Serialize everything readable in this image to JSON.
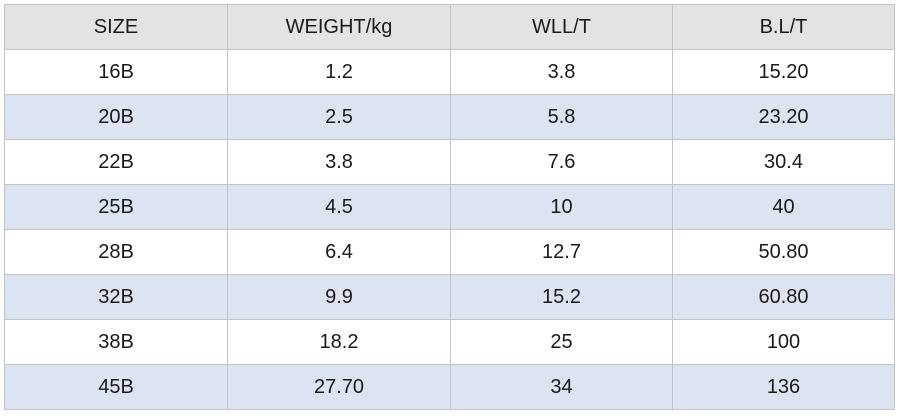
{
  "table": {
    "headers": [
      "SIZE",
      "WEIGHT/kg",
      "WLL/T",
      "B.L/T"
    ],
    "rows": [
      [
        "16B",
        "1.2",
        "3.8",
        "15.20"
      ],
      [
        "20B",
        "2.5",
        "5.8",
        "23.20"
      ],
      [
        "22B",
        "3.8",
        "7.6",
        "30.4"
      ],
      [
        "25B",
        "4.5",
        "10",
        "40"
      ],
      [
        "28B",
        "6.4",
        "12.7",
        "50.80"
      ],
      [
        "32B",
        "9.9",
        "15.2",
        "60.80"
      ],
      [
        "38B",
        "18.2",
        "25",
        "100"
      ],
      [
        "45B",
        "27.70",
        "34",
        "136"
      ]
    ]
  },
  "colors": {
    "header_bg": "#e3e3e3",
    "row_alt_bg": "#dce4f2",
    "row_bg": "#ffffff",
    "border": "#c4c4c4"
  }
}
